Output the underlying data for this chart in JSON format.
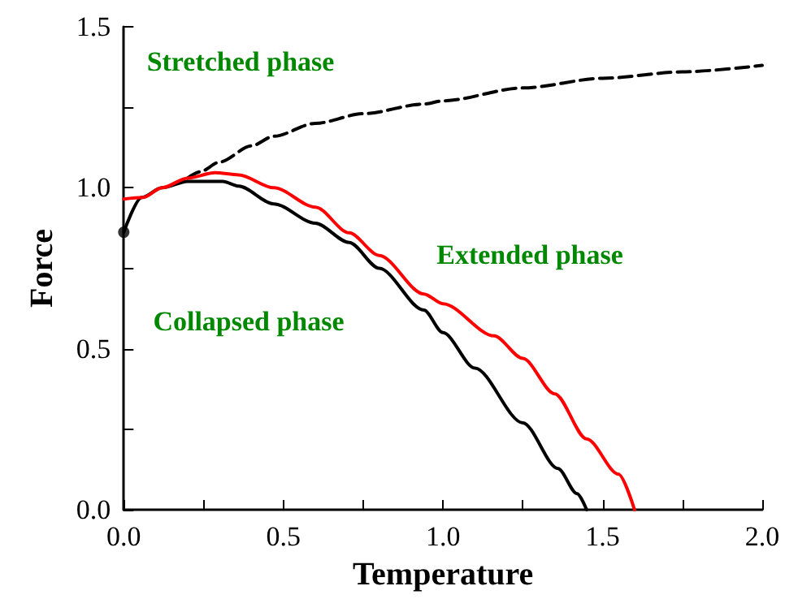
{
  "chart_data": {
    "type": "line",
    "xlabel": "Temperature",
    "ylabel": "Force",
    "xlim": [
      0,
      2
    ],
    "ylim": [
      0,
      1.5
    ],
    "xticks": [
      {
        "value": 0,
        "label": "0.0"
      },
      {
        "value": 0.25,
        "label": null
      },
      0.5,
      {
        "value": 0.75,
        "label": null
      },
      {
        "value": 1,
        "label": "1.0"
      },
      {
        "value": 1.25,
        "label": null
      },
      1.5,
      {
        "value": 1.75,
        "label": null
      },
      {
        "value": 2,
        "label": "2.0"
      }
    ],
    "yticks": [
      {
        "value": 0,
        "label": "0.0"
      },
      {
        "value": 0.25,
        "label": null
      },
      0.5,
      {
        "value": 0.75,
        "label": null
      },
      {
        "value": 1,
        "label": "1.0"
      },
      {
        "value": 1.25,
        "label": null
      },
      1.5
    ],
    "grid": false,
    "marker": "none",
    "series": [
      {
        "color": "#000000",
        "line_style": "dashed",
        "x": [
          0.2,
          0.24,
          0.3,
          0.4,
          0.47,
          0.6,
          0.75,
          0.94,
          1.0,
          1.25,
          1.5,
          1.75,
          2.0
        ],
        "values": [
          1.03,
          1.05,
          1.08,
          1.13,
          1.16,
          1.2,
          1.23,
          1.26,
          1.27,
          1.31,
          1.34,
          1.36,
          1.38
        ]
      },
      {
        "color": "#000000",
        "line_style": "solid",
        "x": [
          0,
          0.056,
          0.12,
          0.2,
          0.25,
          0.31,
          0.36,
          0.47,
          0.6,
          0.706,
          0.8,
          0.94,
          1.0,
          1.1,
          1.25,
          1.36,
          1.42,
          1.45
        ],
        "values": [
          0.862,
          0.97,
          1.0,
          1.02,
          1.02,
          1.02,
          1.005,
          0.95,
          0.89,
          0.83,
          0.75,
          0.62,
          0.55,
          0.44,
          0.27,
          0.128,
          0.05,
          0
        ]
      },
      {
        "color": "#ff0000",
        "line_style": "solid",
        "x": [
          0,
          0.06,
          0.12,
          0.2,
          0.285,
          0.36,
          0.47,
          0.6,
          0.706,
          0.8,
          0.94,
          1.0,
          1.16,
          1.25,
          1.35,
          1.45,
          1.55,
          1.6
        ],
        "values": [
          0.965,
          0.97,
          1.0,
          1.03,
          1.047,
          1.04,
          1.0,
          0.94,
          0.86,
          0.79,
          0.67,
          0.64,
          0.54,
          0.47,
          0.36,
          0.22,
          0.11,
          0
        ]
      },
      {
        "type": "scatter",
        "marker": "circle",
        "color": "#000000",
        "x": [
          0
        ],
        "values": [
          0.862
        ]
      }
    ],
    "annotations": [
      "Stretched phase",
      "Extended phase",
      "Collapsed phase"
    ]
  }
}
